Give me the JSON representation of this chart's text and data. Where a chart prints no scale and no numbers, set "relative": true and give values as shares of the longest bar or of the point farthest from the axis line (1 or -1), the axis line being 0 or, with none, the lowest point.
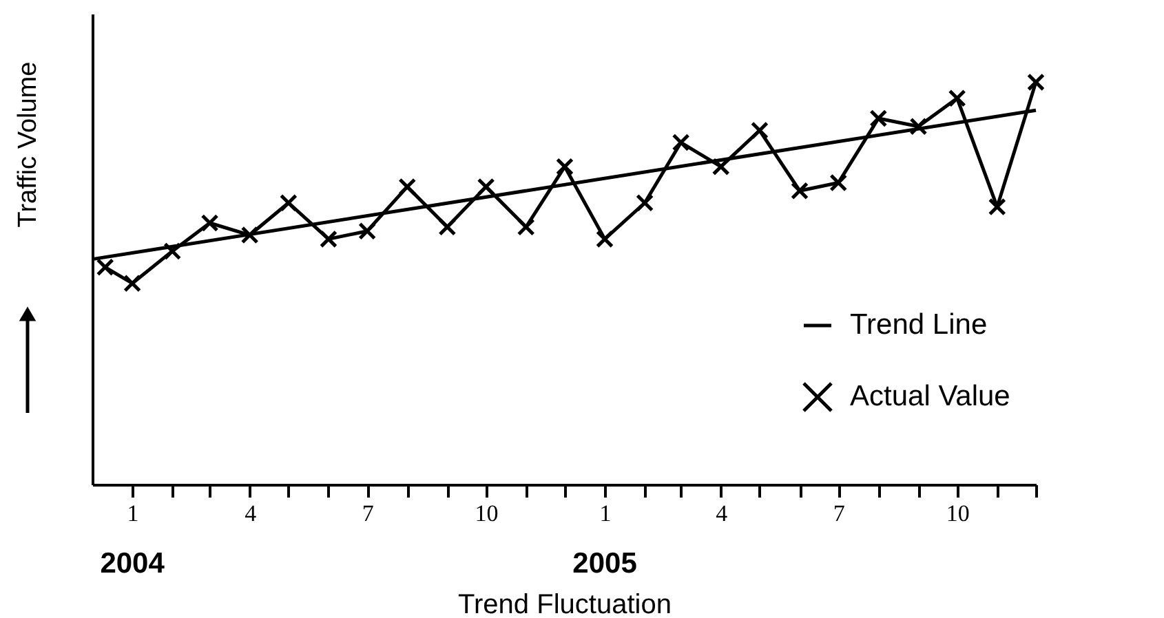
{
  "chart_data": {
    "type": "line",
    "relative": true,
    "xlabel": "Trend Fluctuation",
    "ylabel": "Traffic Volume",
    "annotations": [
      "2004",
      "2005"
    ],
    "xlim": [
      "2003-12",
      "2005-12"
    ],
    "xticks": [
      {
        "value": "2004-01",
        "label": "1"
      },
      {
        "value": "2004-02",
        "label": null
      },
      {
        "value": "2004-03",
        "label": null
      },
      {
        "value": "2004-04",
        "label": "4"
      },
      {
        "value": "2004-05",
        "label": null
      },
      {
        "value": "2004-06",
        "label": null
      },
      {
        "value": "2004-07",
        "label": "7"
      },
      {
        "value": "2004-08",
        "label": null
      },
      {
        "value": "2004-09",
        "label": null
      },
      {
        "value": "2004-10",
        "label": "10"
      },
      {
        "value": "2004-11",
        "label": null
      },
      {
        "value": "2004-12",
        "label": null
      },
      {
        "value": "2005-01",
        "label": "1"
      },
      {
        "value": "2005-02",
        "label": null
      },
      {
        "value": "2005-03",
        "label": null
      },
      {
        "value": "2005-04",
        "label": "4"
      },
      {
        "value": "2005-05",
        "label": null
      },
      {
        "value": "2005-06",
        "label": null
      },
      {
        "value": "2005-07",
        "label": "7"
      },
      {
        "value": "2005-08",
        "label": null
      },
      {
        "value": "2005-09",
        "label": null
      },
      {
        "value": "2005-10",
        "label": "10"
      },
      {
        "value": "2005-11",
        "label": null
      },
      {
        "value": "2005-12",
        "label": null
      }
    ],
    "legend": "bottom right",
    "series": [
      {
        "name": "Trend Line",
        "color": "#000000",
        "marker": "none",
        "x": [
          "2003-12",
          "2005-12"
        ],
        "values": [
          0.56,
          0.93
        ]
      },
      {
        "name": "Actual Value",
        "color": "#000000",
        "marker": "cross",
        "x": [
          "2003-12-11",
          "2004-01",
          "2004-02",
          "2004-03",
          "2004-04",
          "2004-05",
          "2004-06",
          "2004-07",
          "2004-08",
          "2004-09",
          "2004-10",
          "2004-11",
          "2004-12",
          "2005-01",
          "2005-02",
          "2005-03",
          "2005-04",
          "2005-05",
          "2005-06",
          "2005-07",
          "2005-08",
          "2005-09",
          "2005-10",
          "2005-11",
          "2005-12"
        ],
        "values": [
          0.54,
          0.5,
          0.58,
          0.65,
          0.62,
          0.7,
          0.61,
          0.63,
          0.74,
          0.64,
          0.74,
          0.64,
          0.79,
          0.61,
          0.7,
          0.85,
          0.79,
          0.88,
          0.73,
          0.75,
          0.91,
          0.89,
          0.96,
          0.69,
          1
        ]
      }
    ]
  }
}
